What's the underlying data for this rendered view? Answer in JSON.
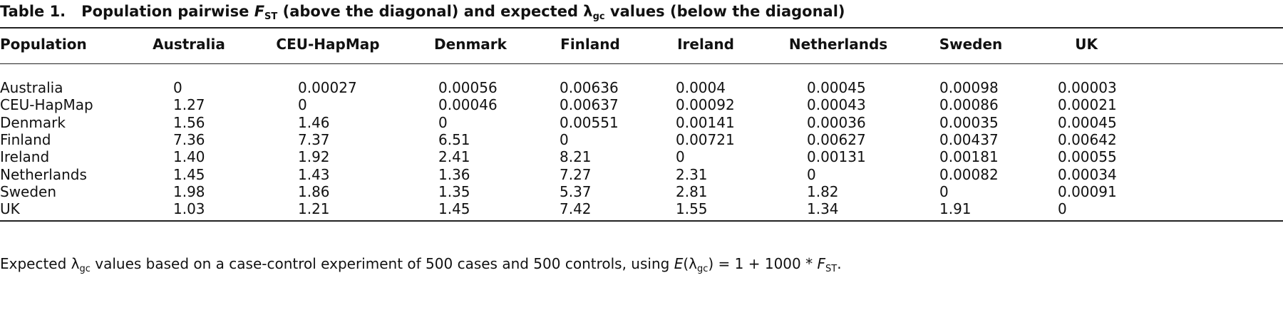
{
  "table": {
    "label": "Table 1.",
    "title": [
      "Population pairwise ",
      "F",
      "ST",
      " (above the diagonal) and expected λ",
      "gc",
      " values (below the diagonal)"
    ],
    "header": [
      "Population",
      "Australia",
      "CEU-HapMap",
      "Denmark",
      "Finland",
      "Ireland",
      "Netherlands",
      "Sweden",
      "UK"
    ],
    "rows": [
      [
        "Australia",
        "0",
        "0.00027",
        "0.00056",
        "0.00636",
        "0.0004",
        "0.00045",
        "0.00098",
        "0.00003"
      ],
      [
        "CEU-HapMap",
        "1.27",
        "0",
        "0.00046",
        "0.00637",
        "0.00092",
        "0.00043",
        "0.00086",
        "0.00021"
      ],
      [
        "Denmark",
        "1.56",
        "1.46",
        "0",
        "0.00551",
        "0.00141",
        "0.00036",
        "0.00035",
        "0.00045"
      ],
      [
        "Finland",
        "7.36",
        "7.37",
        "6.51",
        "0",
        "0.00721",
        "0.00627",
        "0.00437",
        "0.00642"
      ],
      [
        "Ireland",
        "1.40",
        "1.92",
        "2.41",
        "8.21",
        "0",
        "0.00131",
        "0.00181",
        "0.00055"
      ],
      [
        "Netherlands",
        "1.45",
        "1.43",
        "1.36",
        "7.27",
        "2.31",
        "0",
        "0.00082",
        "0.00034"
      ],
      [
        "Sweden",
        "1.98",
        "1.86",
        "1.35",
        "5.37",
        "2.81",
        "1.82",
        "0",
        "0.00091"
      ],
      [
        "UK",
        "1.03",
        "1.21",
        "1.45",
        "7.42",
        "1.55",
        "1.34",
        "1.91",
        "0"
      ]
    ],
    "footnote": [
      "Expected λ",
      "gc",
      " values based on a case-control experiment of 500 cases and 500 controls, using ",
      "E",
      "(λ",
      "gc",
      ") = 1 + 1000 * ",
      "F",
      "ST",
      "."
    ]
  }
}
